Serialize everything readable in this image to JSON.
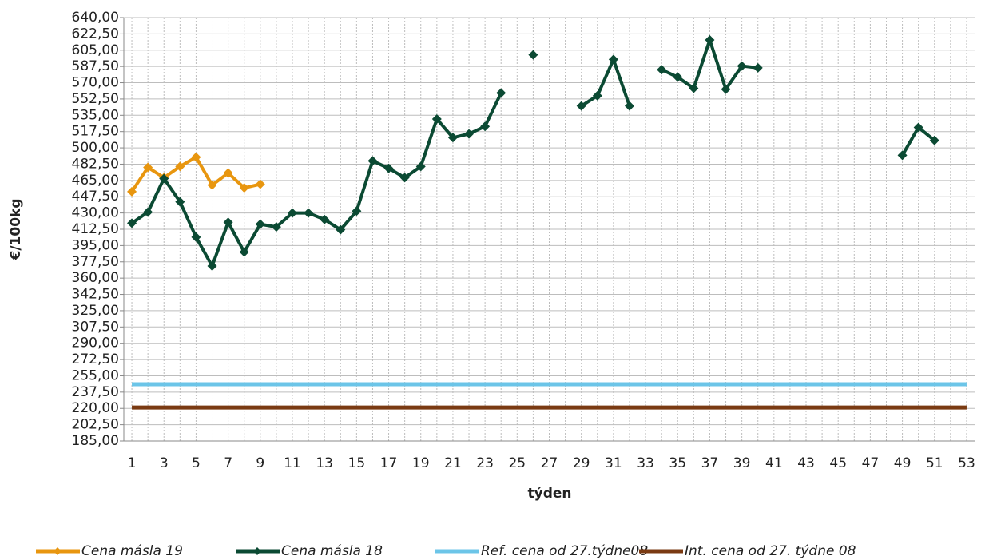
{
  "chart_data": {
    "type": "line",
    "x_label": "týden",
    "y_label": "€/100kg",
    "x": [
      1,
      2,
      3,
      4,
      5,
      6,
      7,
      8,
      9,
      10,
      11,
      12,
      13,
      14,
      15,
      16,
      17,
      18,
      19,
      20,
      21,
      22,
      23,
      24,
      25,
      26,
      27,
      28,
      29,
      30,
      31,
      32,
      33,
      34,
      35,
      36,
      37,
      38,
      39,
      40,
      41,
      42,
      43,
      44,
      45,
      46,
      47,
      48,
      49,
      50,
      51,
      52,
      53
    ],
    "xlim": [
      0.5,
      53.5
    ],
    "xticks": [
      1,
      3,
      5,
      7,
      9,
      11,
      13,
      15,
      17,
      19,
      21,
      23,
      25,
      27,
      29,
      31,
      33,
      35,
      37,
      39,
      41,
      43,
      45,
      47,
      49,
      51,
      53
    ],
    "ylim": [
      185,
      640
    ],
    "yticks": [
      {
        "value": 185,
        "label": "185,00"
      },
      {
        "value": 202.5,
        "label": "202,50"
      },
      {
        "value": 220,
        "label": "220,00"
      },
      {
        "value": 237.5,
        "label": "237,50"
      },
      {
        "value": 255,
        "label": "255,00"
      },
      {
        "value": 272.5,
        "label": "272,50"
      },
      {
        "value": 290,
        "label": "290,00"
      },
      {
        "value": 307.5,
        "label": "307,50"
      },
      {
        "value": 325,
        "label": "325,00"
      },
      {
        "value": 342.5,
        "label": "342,50"
      },
      {
        "value": 360,
        "label": "360,00"
      },
      {
        "value": 377.5,
        "label": "377,50"
      },
      {
        "value": 395,
        "label": "395,00"
      },
      {
        "value": 412.5,
        "label": "412,50"
      },
      {
        "value": 430,
        "label": "430,00"
      },
      {
        "value": 447.5,
        "label": "447,50"
      },
      {
        "value": 465,
        "label": "465,00"
      },
      {
        "value": 482.5,
        "label": "482,50"
      },
      {
        "value": 500,
        "label": "500,00"
      },
      {
        "value": 517.5,
        "label": "517,50"
      },
      {
        "value": 535,
        "label": "535,00"
      },
      {
        "value": 552.5,
        "label": "552,50"
      },
      {
        "value": 570,
        "label": "570,00"
      },
      {
        "value": 587.5,
        "label": "587,50"
      },
      {
        "value": 605,
        "label": "605,00"
      },
      {
        "value": 622.5,
        "label": "622,50"
      },
      {
        "value": 640,
        "label": "640,00"
      }
    ],
    "grid": true,
    "legend": "bottom",
    "series": [
      {
        "name": "Cena másla 19",
        "color": "#e8960f",
        "marker": "diamond",
        "values": [
          453,
          479,
          468,
          480,
          490,
          460,
          473,
          457,
          461,
          null,
          null,
          null,
          null,
          null,
          null,
          null,
          null,
          null,
          null,
          null,
          null,
          null,
          null,
          null,
          null,
          null,
          null,
          null,
          null,
          null,
          null,
          null,
          null,
          null,
          null,
          null,
          null,
          null,
          null,
          null,
          null,
          null,
          null,
          null,
          null,
          null,
          null,
          null,
          null,
          null,
          null,
          null,
          null
        ]
      },
      {
        "name": "Cena másla 18",
        "color": "#0b4a33",
        "marker": "diamond",
        "values": [
          419,
          431,
          467,
          442,
          404,
          373,
          420,
          388,
          418,
          415,
          430,
          430,
          423,
          412,
          432,
          486,
          478,
          468,
          480,
          531,
          511,
          515,
          523,
          559,
          null,
          600,
          null,
          null,
          545,
          556,
          595,
          545,
          null,
          584,
          576,
          564,
          616,
          563,
          588,
          586,
          null,
          null,
          null,
          null,
          null,
          null,
          null,
          null,
          492,
          522,
          508,
          null,
          null
        ]
      },
      {
        "name": "Ref. cena od 27.týdne08",
        "color": "#6cc5e8",
        "marker": null,
        "values": [
          246,
          246,
          246,
          246,
          246,
          246,
          246,
          246,
          246,
          246,
          246,
          246,
          246,
          246,
          246,
          246,
          246,
          246,
          246,
          246,
          246,
          246,
          246,
          246,
          246,
          246,
          246,
          246,
          246,
          246,
          246,
          246,
          246,
          246,
          246,
          246,
          246,
          246,
          246,
          246,
          246,
          246,
          246,
          246,
          246,
          246,
          246,
          246,
          246,
          246,
          246,
          246,
          246
        ]
      },
      {
        "name": "Int. cena od 27. týdne 08",
        "color": "#7a3a12",
        "marker": null,
        "values": [
          221,
          221,
          221,
          221,
          221,
          221,
          221,
          221,
          221,
          221,
          221,
          221,
          221,
          221,
          221,
          221,
          221,
          221,
          221,
          221,
          221,
          221,
          221,
          221,
          221,
          221,
          221,
          221,
          221,
          221,
          221,
          221,
          221,
          221,
          221,
          221,
          221,
          221,
          221,
          221,
          221,
          221,
          221,
          221,
          221,
          221,
          221,
          221,
          221,
          221,
          221,
          221,
          221
        ]
      }
    ]
  }
}
